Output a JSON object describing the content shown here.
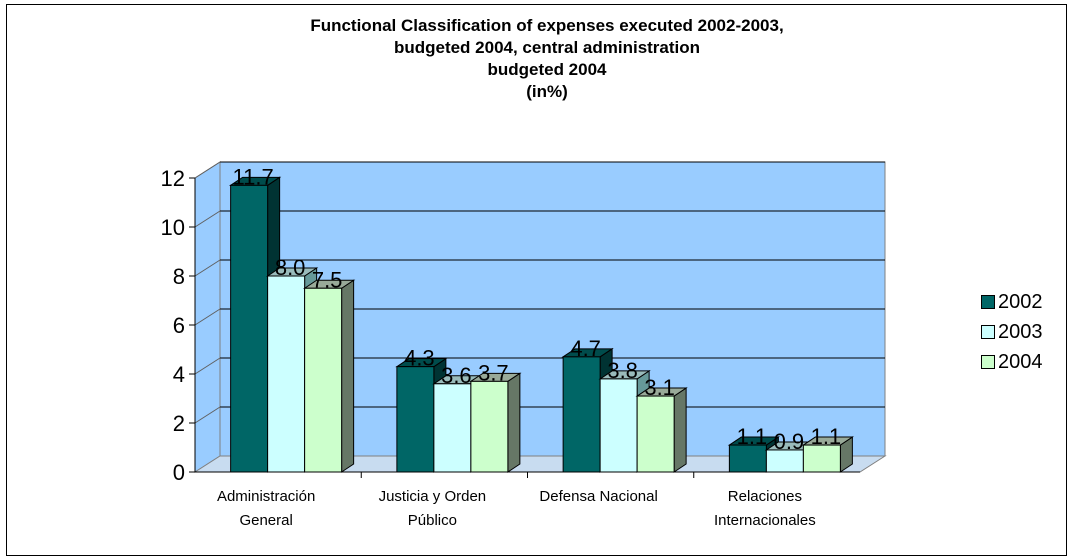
{
  "chart_data": {
    "type": "bar",
    "title_lines": [
      "Functional Classification of expenses executed 2002-2003,",
      "budgeted 2004, central administration",
      "budgeted 2004",
      "(in%)"
    ],
    "categories": [
      [
        "Administración",
        "General"
      ],
      [
        "Justicia y Orden",
        "Público"
      ],
      [
        "Defensa Nacional"
      ],
      [
        "Relaciones",
        "Internacionales"
      ]
    ],
    "series": [
      {
        "name": "2002",
        "values": [
          11.7,
          4.3,
          4.7,
          1.1
        ],
        "labels": [
          "11.7",
          "4.3",
          "4.7",
          "1.1"
        ]
      },
      {
        "name": "2003",
        "values": [
          8.0,
          3.6,
          3.8,
          0.9
        ],
        "labels": [
          "8.0",
          "3.6",
          "3.8",
          "0.9"
        ]
      },
      {
        "name": "2004",
        "values": [
          7.5,
          3.7,
          3.1,
          1.1
        ],
        "labels": [
          "7.5",
          "3.7",
          "3.1",
          "1.1"
        ]
      }
    ],
    "ylim": [
      0,
      12
    ],
    "yticks": [
      "0",
      "2",
      "4",
      "6",
      "8",
      "10",
      "12"
    ],
    "grid": true,
    "legend_position": "right",
    "colors": {
      "series_front": [
        "#006666",
        "#ccffff",
        "#ccffcc"
      ],
      "series_side": [
        "#003333",
        "#669999",
        "#667766"
      ],
      "series_top": [
        "#004c4c",
        "#99bbbb",
        "#99aa99"
      ],
      "wall": "#99ccff",
      "floor": "#c8dcf0",
      "gridline": "#000000"
    }
  }
}
